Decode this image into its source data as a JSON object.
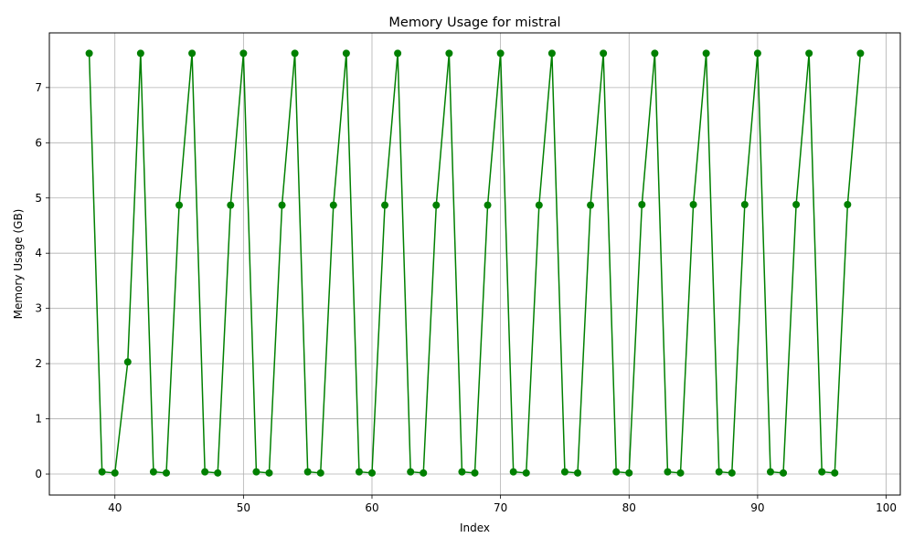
{
  "chart_data": {
    "type": "line",
    "title": "Memory Usage for mistral",
    "xlabel": "Index",
    "ylabel": "Memory Usage (GB)",
    "xlim": [
      34.9,
      101.1
    ],
    "ylim": [
      -0.38,
      7.99
    ],
    "xticks": [
      40,
      50,
      60,
      70,
      80,
      90,
      100
    ],
    "yticks": [
      0,
      1,
      2,
      3,
      4,
      5,
      6,
      7
    ],
    "grid": true,
    "series": [
      {
        "color": "#008000",
        "marker": "circle",
        "x": [
          38,
          39,
          40,
          41,
          42,
          43,
          44,
          45,
          46,
          47,
          48,
          49,
          50,
          51,
          52,
          53,
          54,
          55,
          56,
          57,
          58,
          59,
          60,
          61,
          62,
          63,
          64,
          65,
          66,
          67,
          68,
          69,
          70,
          71,
          72,
          73,
          74,
          75,
          76,
          77,
          78,
          79,
          80,
          81,
          82,
          83,
          84,
          85,
          86,
          87,
          88,
          89,
          90,
          91,
          92,
          93,
          94,
          95,
          96,
          97,
          98
        ],
        "y": [
          7.62,
          0.04,
          0.02,
          2.03,
          7.62,
          0.04,
          0.02,
          4.87,
          7.62,
          0.04,
          0.02,
          4.87,
          7.62,
          0.04,
          0.02,
          4.87,
          7.62,
          0.04,
          0.02,
          4.87,
          7.62,
          0.04,
          0.02,
          4.87,
          7.62,
          0.04,
          0.02,
          4.87,
          7.62,
          0.04,
          0.02,
          4.87,
          7.62,
          0.04,
          0.02,
          4.87,
          7.62,
          0.04,
          0.02,
          4.87,
          7.62,
          0.04,
          0.02,
          4.88,
          7.62,
          0.04,
          0.02,
          4.88,
          7.62,
          0.04,
          0.02,
          4.88,
          7.62,
          0.04,
          0.02,
          4.88,
          7.62,
          0.04,
          0.02,
          4.88,
          7.62
        ]
      }
    ]
  }
}
